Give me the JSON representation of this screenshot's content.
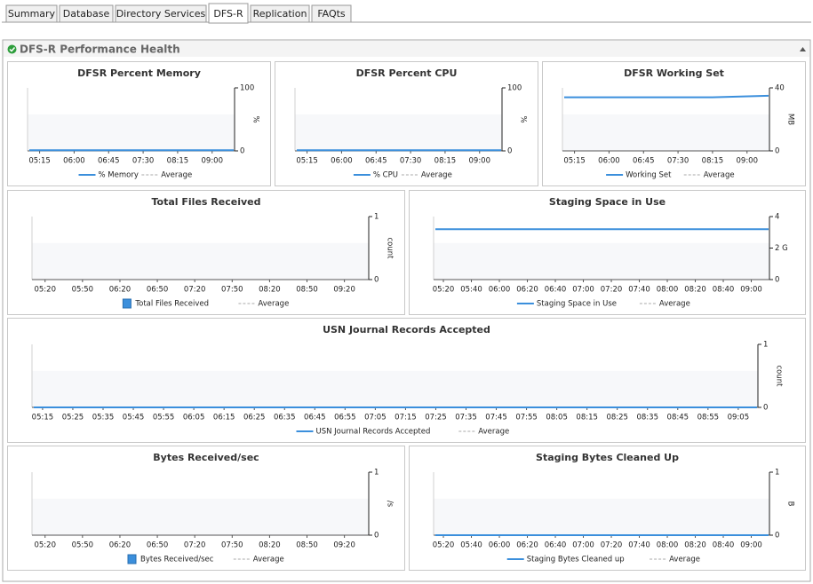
{
  "tabs": [
    "Summary",
    "Database",
    "Directory Services",
    "DFS-R",
    "Replication",
    "FAQts"
  ],
  "active_tab": 3,
  "panel_title": "DFS-R Performance Health",
  "chart_data": [
    {
      "type": "line",
      "title": "DFSR Percent Memory",
      "ylabel": "%",
      "categories": [
        "05:15",
        "06:00",
        "06:45",
        "07:30",
        "08:15",
        "09:00"
      ],
      "series": [
        {
          "name": "% Memory",
          "color": "#3b8fdc",
          "values": [
            1,
            1,
            1,
            1,
            1,
            1
          ]
        },
        {
          "name": "Average",
          "color": "#aaaaaa",
          "values": [
            null,
            null,
            null,
            null,
            null,
            null
          ]
        }
      ],
      "ylim": [
        0,
        100
      ],
      "yticks": [
        0,
        100
      ]
    },
    {
      "type": "line",
      "title": "DFSR Percent CPU",
      "ylabel": "%",
      "categories": [
        "05:15",
        "06:00",
        "06:45",
        "07:30",
        "08:15",
        "09:00"
      ],
      "series": [
        {
          "name": "% CPU",
          "color": "#3b8fdc",
          "values": [
            1,
            1,
            1,
            1,
            1,
            1
          ]
        },
        {
          "name": "Average",
          "color": "#aaaaaa",
          "values": [
            null,
            null,
            null,
            null,
            null,
            null
          ]
        }
      ],
      "ylim": [
        0,
        100
      ],
      "yticks": [
        0,
        100
      ]
    },
    {
      "type": "line",
      "title": "DFSR Working Set",
      "ylabel": "MB",
      "categories": [
        "05:15",
        "06:00",
        "06:45",
        "07:30",
        "08:15",
        "09:00"
      ],
      "series": [
        {
          "name": "Working Set",
          "color": "#3b8fdc",
          "values": [
            34,
            34,
            34,
            34,
            34,
            35
          ]
        },
        {
          "name": "Average",
          "color": "#aaaaaa",
          "values": [
            null,
            null,
            null,
            null,
            null,
            null
          ]
        }
      ],
      "ylim": [
        0,
        40
      ],
      "yticks": [
        0,
        40
      ]
    },
    {
      "type": "bar",
      "title": "Total Files Received",
      "ylabel": "count",
      "categories": [
        "05:20",
        "05:50",
        "06:20",
        "06:50",
        "07:20",
        "07:50",
        "08:20",
        "08:50",
        "09:20"
      ],
      "series": [
        {
          "name": "Total Files Received",
          "color": "#3b8fdc",
          "values": [
            0,
            0,
            0,
            0,
            0,
            0,
            0,
            0,
            0
          ]
        },
        {
          "name": "Average",
          "color": "#aaaaaa",
          "values": [
            null,
            null,
            null,
            null,
            null,
            null,
            null,
            null,
            null
          ]
        }
      ],
      "ylim": [
        0,
        1
      ],
      "yticks": [
        0,
        1
      ]
    },
    {
      "type": "line",
      "title": "Staging Space in Use",
      "categories": [
        "05:20",
        "05:40",
        "06:00",
        "06:20",
        "06:40",
        "07:00",
        "07:20",
        "07:40",
        "08:00",
        "08:20",
        "08:40",
        "09:00"
      ],
      "series": [
        {
          "name": "Staging Space in Use",
          "color": "#3b8fdc",
          "values": [
            3.2,
            3.2,
            3.2,
            3.2,
            3.2,
            3.2,
            3.2,
            3.2,
            3.2,
            3.2,
            3.2,
            3.2
          ]
        },
        {
          "name": "Average",
          "color": "#aaaaaa",
          "values": [
            null,
            null,
            null,
            null,
            null,
            null,
            null,
            null,
            null,
            null,
            null,
            null
          ]
        }
      ],
      "ylim": [
        0,
        4
      ],
      "yticks": [
        0,
        {
          "value": 2,
          "label": "2 G"
        },
        4
      ]
    },
    {
      "type": "line",
      "title": "USN Journal Records Accepted",
      "ylabel": "count",
      "categories": [
        "05:15",
        "05:25",
        "05:35",
        "05:45",
        "05:55",
        "06:05",
        "06:15",
        "06:25",
        "06:35",
        "06:45",
        "06:55",
        "07:05",
        "07:15",
        "07:25",
        "07:35",
        "07:45",
        "07:55",
        "08:05",
        "08:15",
        "08:25",
        "08:35",
        "08:45",
        "08:55",
        "09:05"
      ],
      "series": [
        {
          "name": "USN Journal Records Accepted",
          "color": "#3b8fdc",
          "values": [
            0,
            0,
            0,
            0,
            0,
            0,
            0,
            0,
            0,
            0,
            0,
            0,
            0,
            0,
            0,
            0,
            0,
            0,
            0,
            0,
            0,
            0,
            0,
            0
          ]
        },
        {
          "name": "Average",
          "color": "#aaaaaa",
          "values": [
            null,
            null,
            null,
            null,
            null,
            null,
            null,
            null,
            null,
            null,
            null,
            null,
            null,
            null,
            null,
            null,
            null,
            null,
            null,
            null,
            null,
            null,
            null,
            null
          ]
        }
      ],
      "ylim": [
        0,
        1
      ],
      "yticks": [
        0,
        1
      ]
    },
    {
      "type": "bar",
      "title": "Bytes Received/sec",
      "ylabel": "/s",
      "categories": [
        "05:20",
        "05:50",
        "06:20",
        "06:50",
        "07:20",
        "07:50",
        "08:20",
        "08:50",
        "09:20"
      ],
      "series": [
        {
          "name": "Bytes Received/sec",
          "color": "#3b8fdc",
          "values": [
            0,
            0,
            0,
            0,
            0,
            0,
            0,
            0,
            0
          ]
        },
        {
          "name": "Average",
          "color": "#aaaaaa",
          "values": [
            null,
            null,
            null,
            null,
            null,
            null,
            null,
            null,
            null
          ]
        }
      ],
      "ylim": [
        0,
        1
      ],
      "yticks": [
        0,
        1
      ]
    },
    {
      "type": "line",
      "title": "Staging Bytes Cleaned Up",
      "ylabel": "B",
      "categories": [
        "05:20",
        "05:40",
        "06:00",
        "06:20",
        "06:40",
        "07:00",
        "07:20",
        "07:40",
        "08:00",
        "08:20",
        "08:40",
        "09:00"
      ],
      "series": [
        {
          "name": "Staging Bytes Cleaned up",
          "color": "#3b8fdc",
          "values": [
            0,
            0,
            0,
            0,
            0,
            0,
            0,
            0,
            0,
            0,
            0,
            0
          ]
        },
        {
          "name": "Average",
          "color": "#aaaaaa",
          "values": [
            null,
            null,
            null,
            null,
            null,
            null,
            null,
            null,
            null,
            null,
            null,
            null
          ]
        }
      ],
      "ylim": [
        0,
        1
      ],
      "yticks": [
        0,
        1
      ]
    }
  ]
}
